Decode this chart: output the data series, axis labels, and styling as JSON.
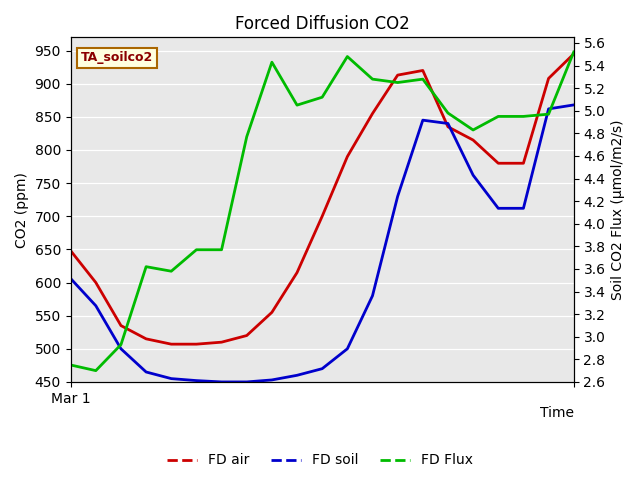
{
  "title": "Forced Diffusion CO2",
  "xlabel": "Time",
  "ylabel_left": "CO2 (ppm)",
  "ylabel_right": "Soil CO2 Flux (μmol/m2/s)",
  "annotation": "TA_soilco2",
  "x": [
    0,
    1,
    2,
    3,
    4,
    5,
    6,
    7,
    8,
    9,
    10,
    11,
    12,
    13,
    14,
    15,
    16,
    17,
    18,
    19,
    20
  ],
  "fd_air": [
    648,
    600,
    535,
    515,
    507,
    507,
    510,
    520,
    555,
    615,
    700,
    790,
    855,
    913,
    920,
    835,
    815,
    780,
    780,
    908,
    945
  ],
  "fd_soil": [
    606,
    565,
    500,
    465,
    455,
    452,
    450,
    450,
    453,
    460,
    470,
    500,
    580,
    730,
    845,
    840,
    762,
    712,
    712,
    862,
    868
  ],
  "fd_flux": [
    2.75,
    2.7,
    2.93,
    3.62,
    3.58,
    3.77,
    3.77,
    4.77,
    5.43,
    5.05,
    5.12,
    5.48,
    5.28,
    5.25,
    5.28,
    4.98,
    4.83,
    4.95,
    4.95,
    4.97,
    5.52
  ],
  "ylim_left": [
    450,
    970
  ],
  "ylim_right": [
    2.6,
    5.65
  ],
  "yticks_left": [
    450,
    500,
    550,
    600,
    650,
    700,
    750,
    800,
    850,
    900,
    950
  ],
  "yticks_right": [
    2.6,
    2.8,
    3.0,
    3.2,
    3.4,
    3.6,
    3.8,
    4.0,
    4.2,
    4.4,
    4.6,
    4.8,
    5.0,
    5.2,
    5.4,
    5.6
  ],
  "color_air": "#cc0000",
  "color_soil": "#0000cc",
  "color_flux": "#00bb00",
  "bg_color": "#e8e8e8",
  "x_label_start": "Mar 1",
  "linewidth": 2.0,
  "title_fontsize": 12,
  "axis_fontsize": 10,
  "legend_fontsize": 10
}
